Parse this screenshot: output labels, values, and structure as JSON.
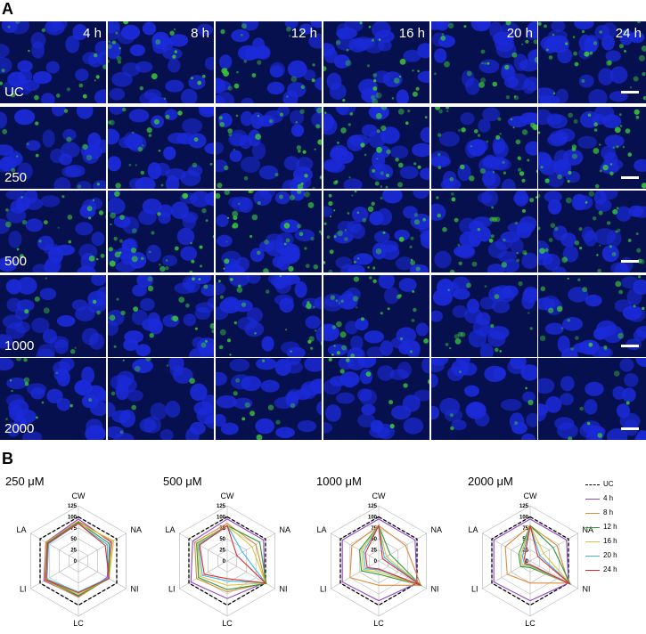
{
  "panels": {
    "a_label": "A",
    "b_label": "B"
  },
  "time_labels": [
    "4 h",
    "8 h",
    "12 h",
    "16 h",
    "20 h",
    "24 h"
  ],
  "row_labels": [
    "UC",
    "250",
    "500",
    "1000",
    "2000"
  ],
  "colors": {
    "nucleus": "#1b2ad8",
    "stain": "#3ac83a",
    "background": "#07104f"
  },
  "chart_data": [
    {
      "type": "radar",
      "title": "250 μM",
      "axes": [
        "CW",
        "NA",
        "NI",
        "LC",
        "LI",
        "LA"
      ],
      "radial_ticks": [
        "125",
        "100",
        "75",
        "50",
        "25",
        "0"
      ],
      "rmax": 125,
      "series": [
        {
          "name": "UC",
          "color": "#000000",
          "dashed": true,
          "values": [
            100,
            100,
            100,
            100,
            100,
            100
          ]
        },
        {
          "name": "4 h",
          "color": "#8e44c9",
          "values": [
            95,
            85,
            75,
            80,
            90,
            85
          ]
        },
        {
          "name": "8 h",
          "color": "#e08a3a",
          "values": [
            90,
            88,
            78,
            82,
            88,
            85
          ]
        },
        {
          "name": "12 h",
          "color": "#2a9a3a",
          "values": [
            88,
            80,
            80,
            78,
            85,
            82
          ]
        },
        {
          "name": "16 h",
          "color": "#e0c23a",
          "values": [
            85,
            92,
            80,
            75,
            84,
            80
          ]
        },
        {
          "name": "20 h",
          "color": "#3ab6e0",
          "values": [
            85,
            75,
            78,
            70,
            82,
            78
          ]
        },
        {
          "name": "24 h",
          "color": "#e02a2a",
          "values": [
            85,
            70,
            80,
            72,
            85,
            80
          ]
        }
      ]
    },
    {
      "type": "radar",
      "title": "500 μM",
      "axes": [
        "CW",
        "NA",
        "NI",
        "LC",
        "LI",
        "LA"
      ],
      "radial_ticks": [
        "125",
        "100",
        "75",
        "50",
        "25",
        "0"
      ],
      "rmax": 125,
      "series": [
        {
          "name": "UC",
          "color": "#000000",
          "dashed": true,
          "values": [
            100,
            100,
            100,
            100,
            100,
            100
          ]
        },
        {
          "name": "4 h",
          "color": "#8e44c9",
          "values": [
            95,
            95,
            98,
            85,
            95,
            90
          ]
        },
        {
          "name": "8 h",
          "color": "#e08a3a",
          "values": [
            85,
            75,
            100,
            70,
            80,
            85
          ]
        },
        {
          "name": "12 h",
          "color": "#2a9a3a",
          "values": [
            80,
            85,
            102,
            65,
            75,
            80
          ]
        },
        {
          "name": "16 h",
          "color": "#e0c23a",
          "values": [
            80,
            65,
            100,
            55,
            70,
            78
          ]
        },
        {
          "name": "20 h",
          "color": "#3ab6e0",
          "values": [
            80,
            40,
            100,
            45,
            65,
            75
          ]
        },
        {
          "name": "24 h",
          "color": "#e02a2a",
          "values": [
            80,
            25,
            100,
            40,
            60,
            72
          ]
        }
      ]
    },
    {
      "type": "radar",
      "title": "1000 μM",
      "axes": [
        "CW",
        "NA",
        "NI",
        "LC",
        "LI",
        "LA"
      ],
      "radial_ticks": [
        "125",
        "100",
        "75",
        "50",
        "25",
        "0"
      ],
      "rmax": 125,
      "series": [
        {
          "name": "UC",
          "color": "#000000",
          "dashed": true,
          "values": [
            100,
            100,
            100,
            100,
            100,
            100
          ]
        },
        {
          "name": "4 h",
          "color": "#8e44c9",
          "values": [
            95,
            95,
            100,
            90,
            95,
            95
          ]
        },
        {
          "name": "8 h",
          "color": "#e08a3a",
          "values": [
            80,
            70,
            110,
            55,
            75,
            70
          ]
        },
        {
          "name": "12 h",
          "color": "#2a9a3a",
          "values": [
            80,
            30,
            110,
            30,
            45,
            50
          ]
        },
        {
          "name": "16 h",
          "color": "#e0c23a",
          "values": [
            80,
            20,
            110,
            25,
            40,
            45
          ]
        },
        {
          "name": "20 h",
          "color": "#3ab6e0",
          "values": [
            80,
            15,
            110,
            20,
            35,
            40
          ]
        },
        {
          "name": "24 h",
          "color": "#e02a2a",
          "values": [
            80,
            10,
            110,
            18,
            30,
            35
          ]
        }
      ]
    },
    {
      "type": "radar",
      "title": "2000 μM",
      "axes": [
        "CW",
        "NA",
        "NI",
        "LC",
        "LI",
        "LA"
      ],
      "radial_ticks": [
        "125",
        "100",
        "75",
        "50",
        "25",
        "0"
      ],
      "rmax": 125,
      "series": [
        {
          "name": "UC",
          "color": "#000000",
          "dashed": true,
          "values": [
            100,
            100,
            100,
            100,
            100,
            100
          ]
        },
        {
          "name": "4 h",
          "color": "#8e44c9",
          "values": [
            95,
            95,
            100,
            90,
            95,
            95
          ]
        },
        {
          "name": "8 h",
          "color": "#e08a3a",
          "values": [
            80,
            70,
            100,
            50,
            60,
            65
          ]
        },
        {
          "name": "12 h",
          "color": "#2a9a3a",
          "values": [
            80,
            60,
            105,
            15,
            25,
            30
          ]
        },
        {
          "name": "16 h",
          "color": "#e0c23a",
          "values": [
            80,
            35,
            105,
            12,
            20,
            25
          ]
        },
        {
          "name": "20 h",
          "color": "#3ab6e0",
          "values": [
            80,
            25,
            105,
            10,
            15,
            20
          ]
        },
        {
          "name": "24 h",
          "color": "#e02a2a",
          "values": [
            80,
            20,
            105,
            8,
            12,
            15
          ]
        }
      ]
    }
  ],
  "legend": [
    "UC",
    "4 h",
    "8 h",
    "12 h",
    "16 h",
    "20 h",
    "24 h"
  ]
}
